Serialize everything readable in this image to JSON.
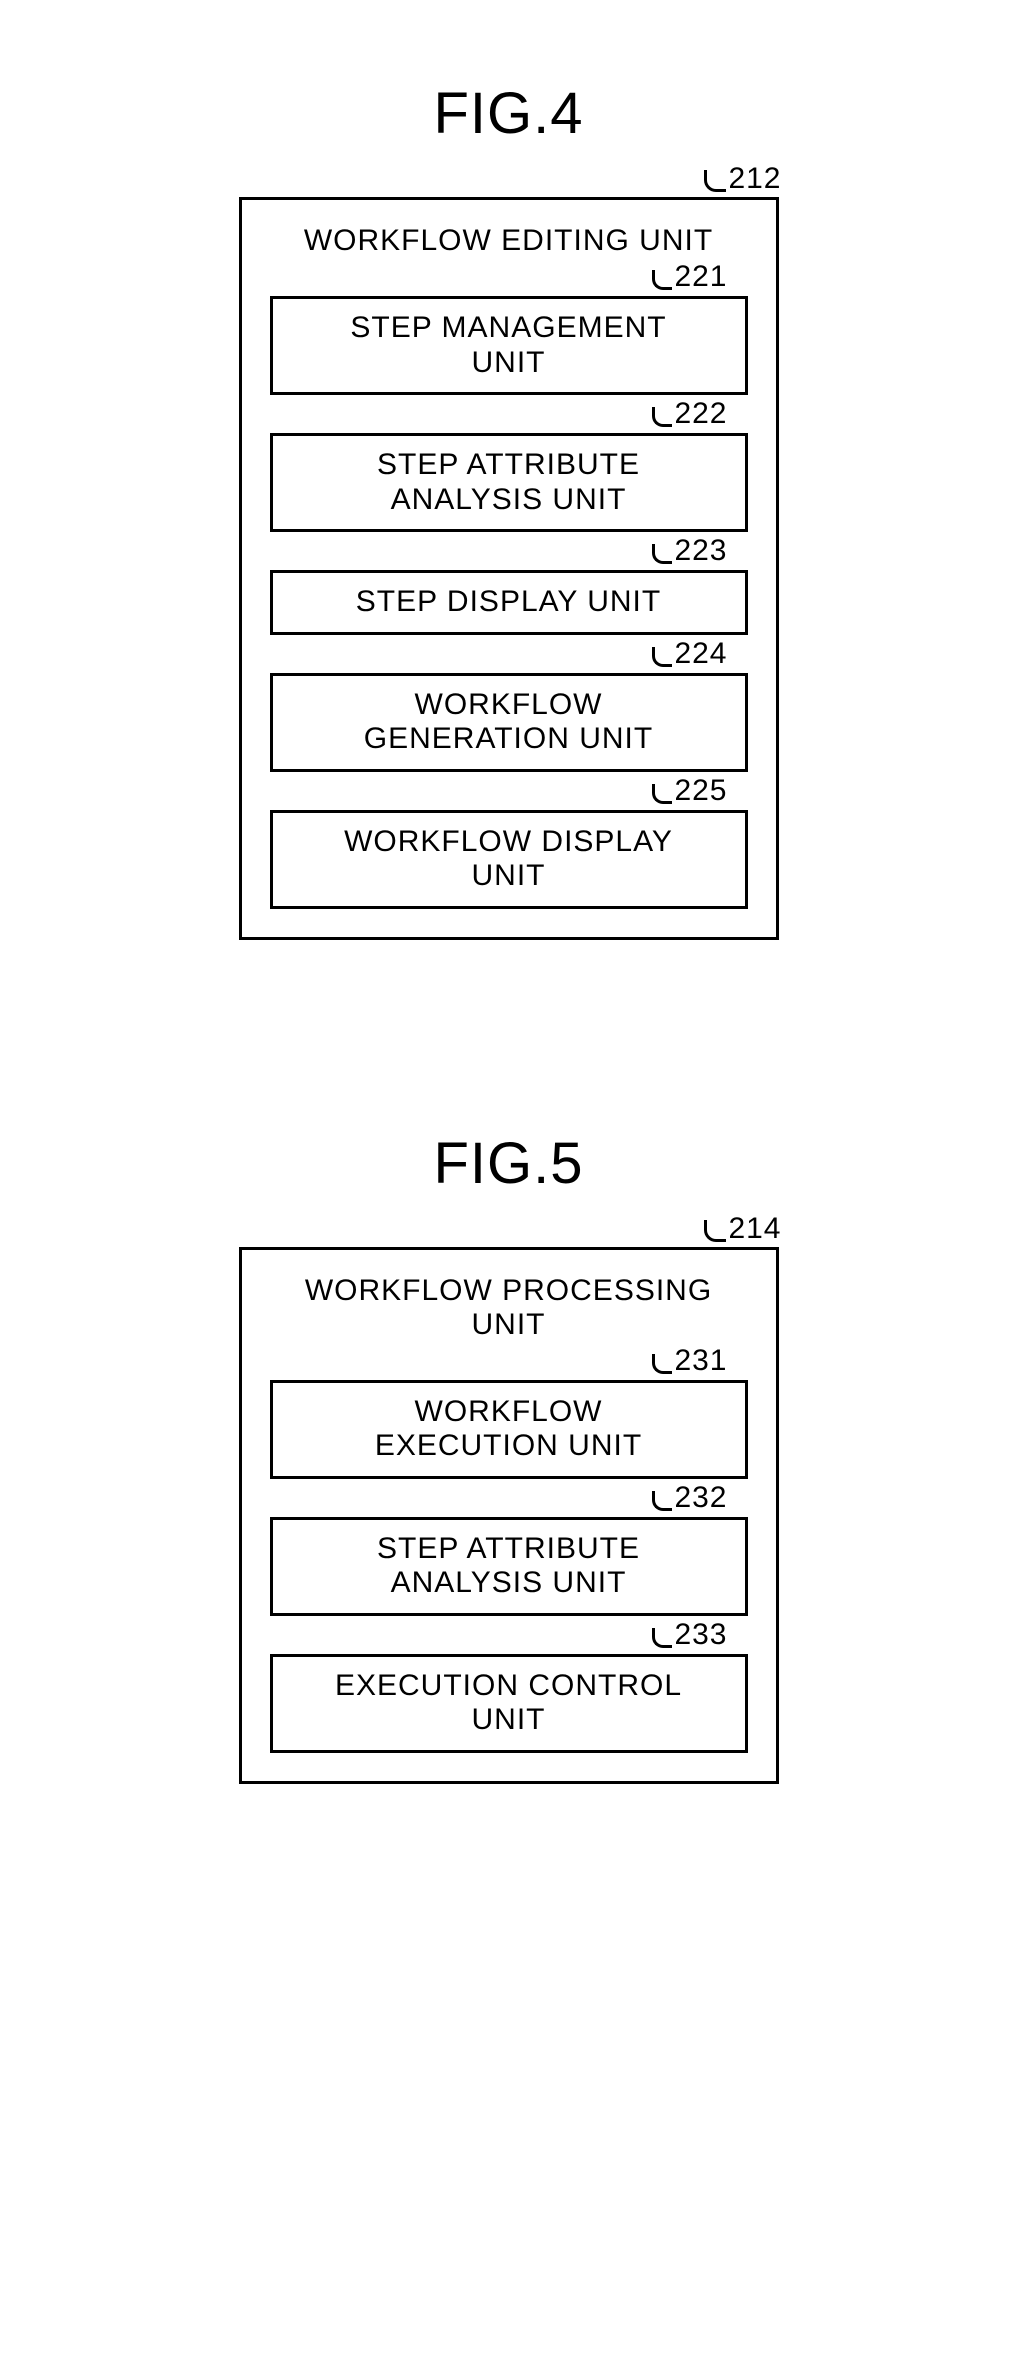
{
  "fig4": {
    "title": "FIG.4",
    "ref": "212",
    "outer_label": "WORKFLOW EDITING UNIT",
    "boxes": [
      {
        "ref": "221",
        "label": "STEP MANAGEMENT\nUNIT"
      },
      {
        "ref": "222",
        "label": "STEP ATTRIBUTE\nANALYSIS UNIT"
      },
      {
        "ref": "223",
        "label": "STEP DISPLAY UNIT"
      },
      {
        "ref": "224",
        "label": "WORKFLOW\nGENERATION UNIT"
      },
      {
        "ref": "225",
        "label": "WORKFLOW DISPLAY\nUNIT"
      }
    ]
  },
  "fig5": {
    "title": "FIG.5",
    "ref": "214",
    "outer_label": "WORKFLOW PROCESSING\nUNIT",
    "boxes": [
      {
        "ref": "231",
        "label": "WORKFLOW\nEXECUTION UNIT"
      },
      {
        "ref": "232",
        "label": "STEP ATTRIBUTE\nANALYSIS UNIT"
      },
      {
        "ref": "233",
        "label": "EXECUTION CONTROL\nUNIT"
      }
    ]
  },
  "style": {
    "border_color": "#000000",
    "background": "#ffffff",
    "title_fontsize": 58,
    "label_fontsize": 30,
    "ref_fontsize": 30,
    "border_width": 3,
    "outer_box_width": 540
  }
}
